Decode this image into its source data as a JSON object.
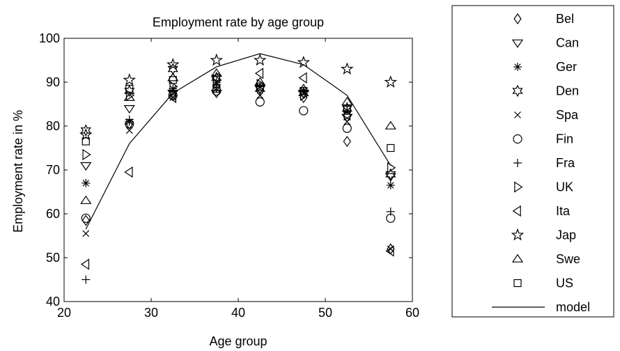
{
  "chart_data": {
    "type": "scatter",
    "title": "Employment rate by age group",
    "xlabel": "Age group",
    "ylabel": "Employment rate in %",
    "xlim": [
      20,
      60
    ],
    "ylim": [
      40,
      100
    ],
    "xticks": [
      20,
      30,
      40,
      50,
      60
    ],
    "yticks": [
      40,
      50,
      60,
      70,
      80,
      90,
      100
    ],
    "grid": false,
    "legend_position": "outside-right",
    "x_groups": [
      22.5,
      27.5,
      32.5,
      37.5,
      42.5,
      47.5,
      52.5,
      57.5
    ],
    "series": [
      {
        "name": "Bel",
        "marker": "diamond",
        "values": [
          58.5,
          80.5,
          87.0,
          89.0,
          88.0,
          86.5,
          76.5,
          52.0
        ]
      },
      {
        "name": "Can",
        "marker": "triangle-down",
        "values": [
          71.0,
          84.0,
          87.5,
          87.5,
          88.5,
          87.5,
          82.0,
          68.5
        ]
      },
      {
        "name": "Ger",
        "marker": "asterisk",
        "values": [
          67.0,
          81.0,
          88.5,
          90.0,
          89.0,
          88.0,
          83.5,
          66.5
        ]
      },
      {
        "name": "Den",
        "marker": "hexagram",
        "values": [
          79.0,
          88.0,
          93.0,
          91.0,
          88.5,
          87.5,
          84.0,
          69.0
        ]
      },
      {
        "name": "Spa",
        "marker": "cross",
        "values": [
          55.5,
          79.0,
          86.5,
          88.5,
          87.0,
          88.0,
          81.0,
          52.0
        ]
      },
      {
        "name": "Fin",
        "marker": "circle",
        "values": [
          59.0,
          80.5,
          87.0,
          88.0,
          85.5,
          83.5,
          79.5,
          59.0
        ]
      },
      {
        "name": "Fra",
        "marker": "plus",
        "values": [
          45.0,
          81.5,
          88.0,
          89.5,
          89.0,
          88.0,
          84.5,
          60.5
        ]
      },
      {
        "name": "UK",
        "marker": "triangle-right",
        "values": [
          73.5,
          87.0,
          89.0,
          90.5,
          89.5,
          87.0,
          82.5,
          70.5
        ]
      },
      {
        "name": "Ita",
        "marker": "triangle-left",
        "values": [
          48.5,
          69.5,
          86.5,
          91.0,
          92.0,
          91.0,
          82.5,
          51.5
        ]
      },
      {
        "name": "Jap",
        "marker": "pentagram",
        "values": [
          78.0,
          90.5,
          94.0,
          95.0,
          95.0,
          94.5,
          93.0,
          90.0
        ]
      },
      {
        "name": "Swe",
        "marker": "triangle-up",
        "values": [
          63.0,
          86.5,
          91.0,
          92.0,
          90.0,
          88.5,
          85.5,
          80.0
        ]
      },
      {
        "name": "US",
        "marker": "square",
        "values": [
          76.5,
          88.5,
          90.5,
          88.5,
          89.0,
          88.0,
          84.0,
          75.0
        ]
      }
    ],
    "model": {
      "name": "model",
      "x": [
        22.5,
        27.5,
        32.5,
        37.5,
        42.5,
        47.5,
        52.5,
        57.5
      ],
      "y": [
        56.5,
        76.0,
        87.5,
        93.5,
        96.5,
        94.0,
        87.0,
        71.0
      ]
    }
  }
}
